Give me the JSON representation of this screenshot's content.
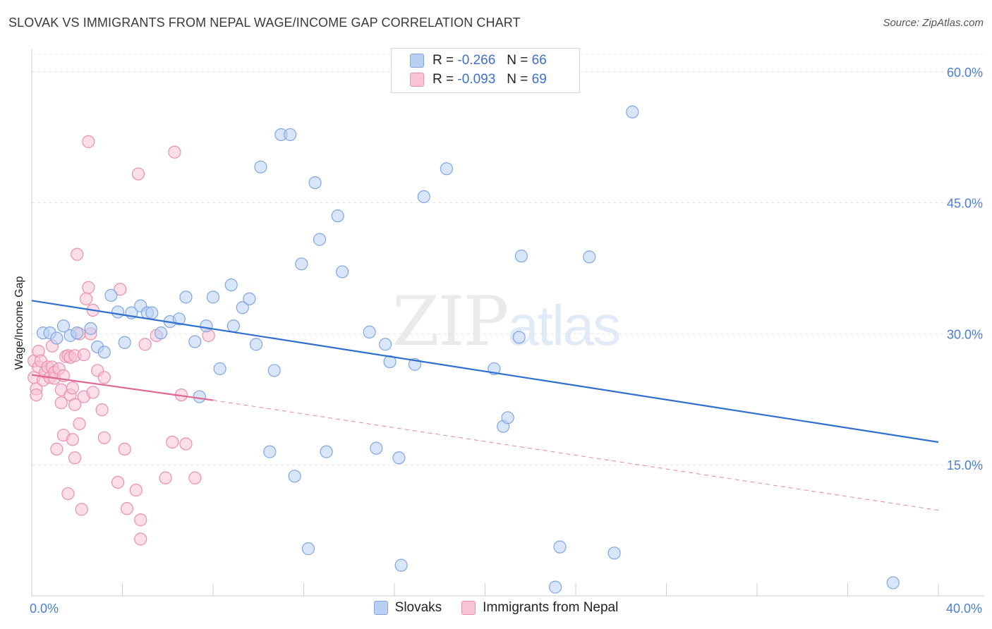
{
  "header": {
    "title": "SLOVAK VS IMMIGRANTS FROM NEPAL WAGE/INCOME GAP CORRELATION CHART",
    "source": "Source: ZipAtlas.com"
  },
  "colors": {
    "slovaks_fill": "#b9d0f2",
    "slovaks_stroke": "#7fa6e3",
    "slovaks_line": "#2f6fcf",
    "nepal_fill": "#f8c3d3",
    "nepal_stroke": "#ec8fac",
    "nepal_line": "#e06690",
    "tick_label": "#4a7fd4"
  },
  "legend_top": {
    "rows": [
      {
        "r_label": "R =",
        "r_value": "-0.266",
        "n_label": "N =",
        "n_value": "66"
      },
      {
        "r_label": "R =",
        "r_value": "-0.093",
        "n_label": "N =",
        "n_value": "69"
      }
    ]
  },
  "legend_bottom": {
    "items": [
      {
        "label": "Slovaks"
      },
      {
        "label": "Immigrants from Nepal"
      }
    ]
  },
  "watermark": {
    "zip": "ZIP",
    "atlas": "atlas"
  },
  "chart_data": {
    "type": "scatter",
    "title": "SLOVAK VS IMMIGRANTS FROM NEPAL WAGE/INCOME GAP CORRELATION CHART",
    "xlabel": "",
    "ylabel": "Wage/Income Gap",
    "xlim": [
      0,
      40
    ],
    "ylim": [
      0,
      62
    ],
    "x_tick_labels": [
      "0.0%",
      "40.0%"
    ],
    "y_ticks": [
      15,
      30,
      45,
      60
    ],
    "y_tick_labels": [
      "15.0%",
      "30.0%",
      "45.0%",
      "60.0%"
    ],
    "grid": true,
    "legend_position": "top-center",
    "series": [
      {
        "name": "Slovaks",
        "points": [
          [
            0.5,
            30.1
          ],
          [
            0.8,
            30.1
          ],
          [
            1.1,
            29.5
          ],
          [
            1.4,
            30.9
          ],
          [
            1.7,
            29.8
          ],
          [
            2.0,
            30.1
          ],
          [
            2.6,
            30.6
          ],
          [
            2.9,
            28.5
          ],
          [
            3.2,
            27.9
          ],
          [
            3.5,
            34.4
          ],
          [
            3.8,
            32.5
          ],
          [
            4.1,
            29.0
          ],
          [
            4.4,
            32.4
          ],
          [
            4.8,
            33.2
          ],
          [
            5.1,
            32.4
          ],
          [
            5.3,
            32.4
          ],
          [
            5.7,
            30.1
          ],
          [
            6.1,
            31.4
          ],
          [
            6.5,
            31.7
          ],
          [
            6.8,
            34.2
          ],
          [
            7.2,
            29.1
          ],
          [
            7.4,
            22.8
          ],
          [
            7.7,
            30.9
          ],
          [
            8.0,
            34.2
          ],
          [
            8.3,
            26.0
          ],
          [
            8.8,
            35.6
          ],
          [
            8.9,
            30.9
          ],
          [
            9.3,
            33.0
          ],
          [
            9.6,
            34.0
          ],
          [
            9.9,
            28.8
          ],
          [
            10.1,
            49.1
          ],
          [
            10.5,
            16.5
          ],
          [
            10.7,
            25.8
          ],
          [
            11.0,
            52.8
          ],
          [
            11.4,
            52.8
          ],
          [
            11.6,
            13.7
          ],
          [
            11.9,
            38.0
          ],
          [
            12.2,
            5.4
          ],
          [
            12.5,
            47.3
          ],
          [
            12.7,
            40.8
          ],
          [
            13.0,
            16.5
          ],
          [
            13.5,
            43.5
          ],
          [
            13.7,
            37.1
          ],
          [
            14.9,
            30.2
          ],
          [
            15.2,
            16.9
          ],
          [
            15.6,
            28.8
          ],
          [
            15.8,
            26.8
          ],
          [
            16.2,
            15.8
          ],
          [
            16.3,
            3.5
          ],
          [
            16.9,
            26.5
          ],
          [
            17.3,
            45.7
          ],
          [
            18.3,
            48.9
          ],
          [
            20.4,
            26.0
          ],
          [
            20.8,
            19.4
          ],
          [
            21.0,
            20.4
          ],
          [
            21.5,
            29.6
          ],
          [
            21.6,
            38.9
          ],
          [
            23.1,
            1.0
          ],
          [
            23.3,
            5.6
          ],
          [
            24.6,
            38.8
          ],
          [
            25.7,
            4.9
          ],
          [
            26.5,
            55.4
          ],
          [
            38.0,
            1.5
          ]
        ],
        "trend": {
          "x": [
            0,
            40
          ],
          "y": [
            33.8,
            17.6
          ]
        }
      },
      {
        "name": "Immigrants from Nepal",
        "points": [
          [
            0.1,
            26.9
          ],
          [
            0.1,
            25.0
          ],
          [
            0.2,
            23.7
          ],
          [
            0.2,
            23.0
          ],
          [
            0.3,
            28.0
          ],
          [
            0.3,
            26.2
          ],
          [
            0.4,
            26.9
          ],
          [
            0.5,
            24.7
          ],
          [
            0.6,
            25.6
          ],
          [
            0.7,
            26.2
          ],
          [
            0.8,
            25.0
          ],
          [
            0.9,
            26.2
          ],
          [
            0.9,
            28.6
          ],
          [
            1.0,
            24.9
          ],
          [
            1.0,
            25.6
          ],
          [
            1.1,
            16.8
          ],
          [
            1.2,
            26.0
          ],
          [
            1.3,
            23.6
          ],
          [
            1.3,
            22.1
          ],
          [
            1.4,
            18.4
          ],
          [
            1.4,
            25.2
          ],
          [
            1.5,
            27.4
          ],
          [
            1.6,
            11.7
          ],
          [
            1.6,
            27.5
          ],
          [
            1.7,
            27.3
          ],
          [
            1.7,
            23.0
          ],
          [
            1.8,
            23.8
          ],
          [
            1.8,
            17.9
          ],
          [
            1.9,
            21.9
          ],
          [
            1.9,
            27.5
          ],
          [
            1.9,
            15.8
          ],
          [
            2.0,
            39.1
          ],
          [
            2.1,
            19.7
          ],
          [
            2.1,
            30.0
          ],
          [
            2.2,
            9.9
          ],
          [
            2.3,
            27.6
          ],
          [
            2.3,
            22.8
          ],
          [
            2.4,
            34.0
          ],
          [
            2.5,
            35.3
          ],
          [
            2.5,
            52.0
          ],
          [
            2.6,
            30.0
          ],
          [
            2.7,
            23.3
          ],
          [
            2.7,
            32.7
          ],
          [
            2.9,
            25.8
          ],
          [
            3.1,
            21.3
          ],
          [
            3.2,
            18.1
          ],
          [
            3.2,
            25.0
          ],
          [
            3.8,
            13.0
          ],
          [
            3.9,
            35.1
          ],
          [
            4.1,
            16.8
          ],
          [
            4.2,
            10.0
          ],
          [
            4.6,
            12.1
          ],
          [
            4.7,
            48.3
          ],
          [
            4.8,
            6.5
          ],
          [
            4.8,
            8.7
          ],
          [
            5.0,
            28.8
          ],
          [
            5.5,
            29.8
          ],
          [
            5.9,
            13.5
          ],
          [
            6.2,
            17.6
          ],
          [
            6.3,
            50.8
          ],
          [
            6.6,
            23.0
          ],
          [
            6.8,
            17.4
          ],
          [
            7.2,
            13.5
          ],
          [
            7.8,
            29.8
          ]
        ],
        "trend_solid": {
          "x": [
            0,
            8
          ],
          "y": [
            25.3,
            22.4
          ]
        },
        "trend_dashed": {
          "x": [
            8,
            40
          ],
          "y": [
            22.4,
            9.8
          ]
        }
      }
    ]
  }
}
